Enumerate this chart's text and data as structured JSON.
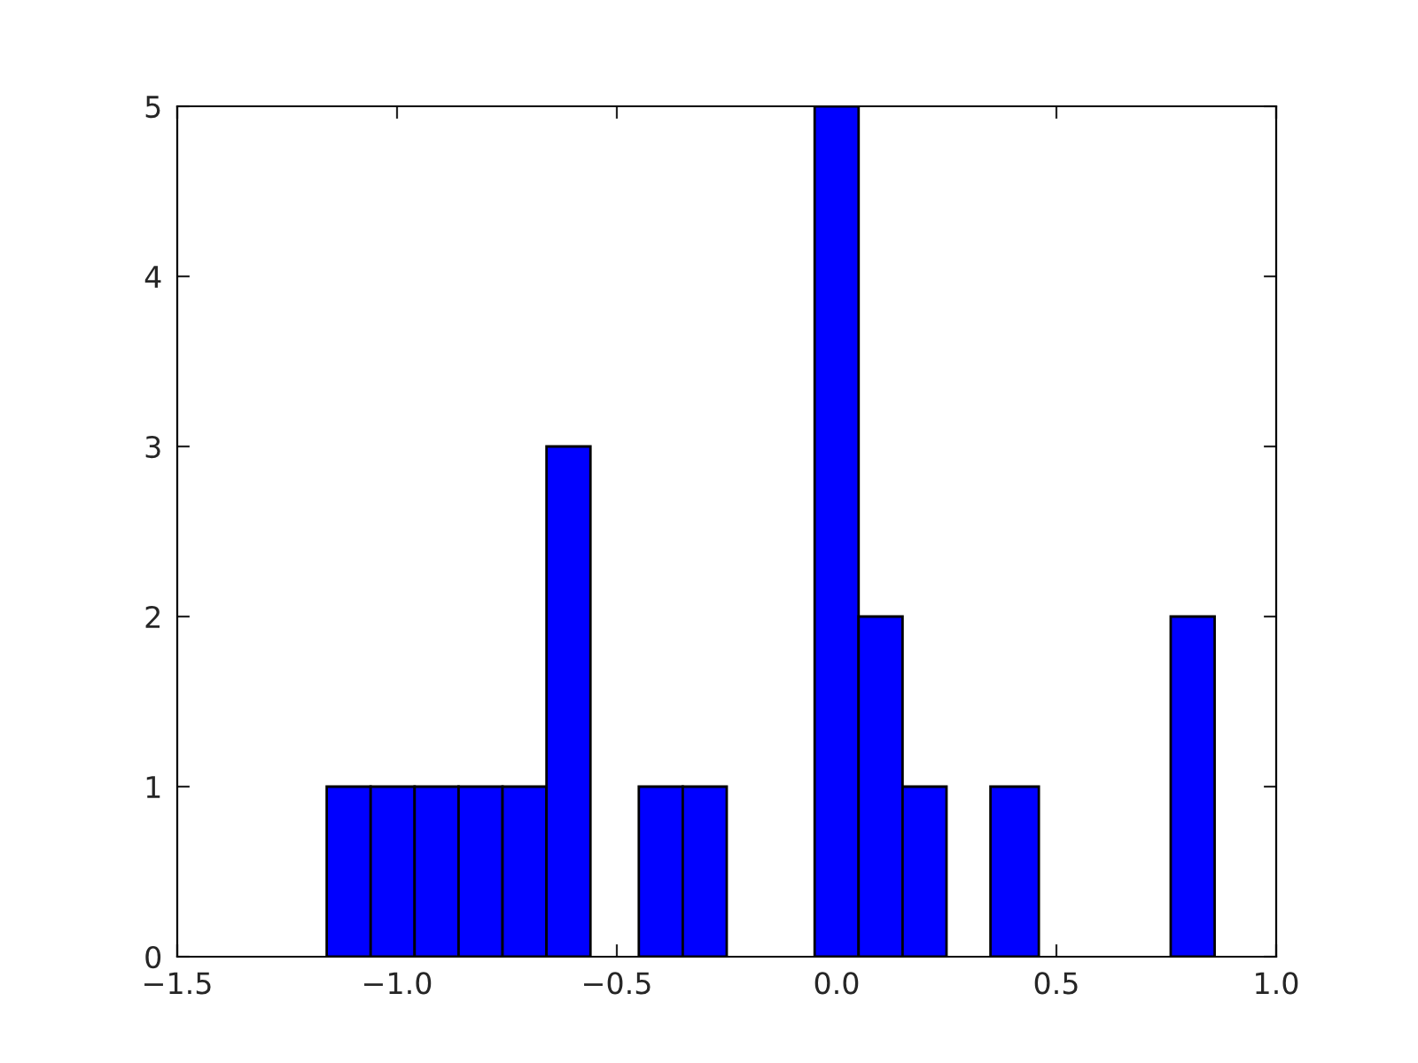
{
  "chart_data": {
    "type": "histogram",
    "bins": [
      -1.16,
      -1.06,
      -0.96,
      -0.86,
      -0.76,
      -0.66,
      -0.56,
      -0.45,
      -0.35,
      -0.25,
      -0.05,
      0.05,
      0.15,
      0.25,
      0.35,
      0.46,
      0.76,
      0.86
    ],
    "values": [
      1,
      1,
      1,
      1,
      1,
      3,
      0,
      1,
      1,
      0,
      5,
      2,
      1,
      0,
      1,
      0,
      2
    ],
    "color": "#0000ff",
    "xlim": [
      -1.5,
      1.0
    ],
    "xticks": [
      {
        "value": -1.5,
        "label": "−1.5"
      },
      {
        "value": -1.0,
        "label": "−1.0"
      },
      {
        "value": -0.5,
        "label": "−0.5"
      },
      {
        "value": 0.0,
        "label": "0.0"
      },
      {
        "value": 0.5,
        "label": "0.5"
      },
      {
        "value": 1.0,
        "label": "1.0"
      }
    ],
    "ylim": [
      0,
      5
    ],
    "yticks": [
      0,
      1,
      2,
      3,
      4,
      5
    ],
    "grid": false
  }
}
